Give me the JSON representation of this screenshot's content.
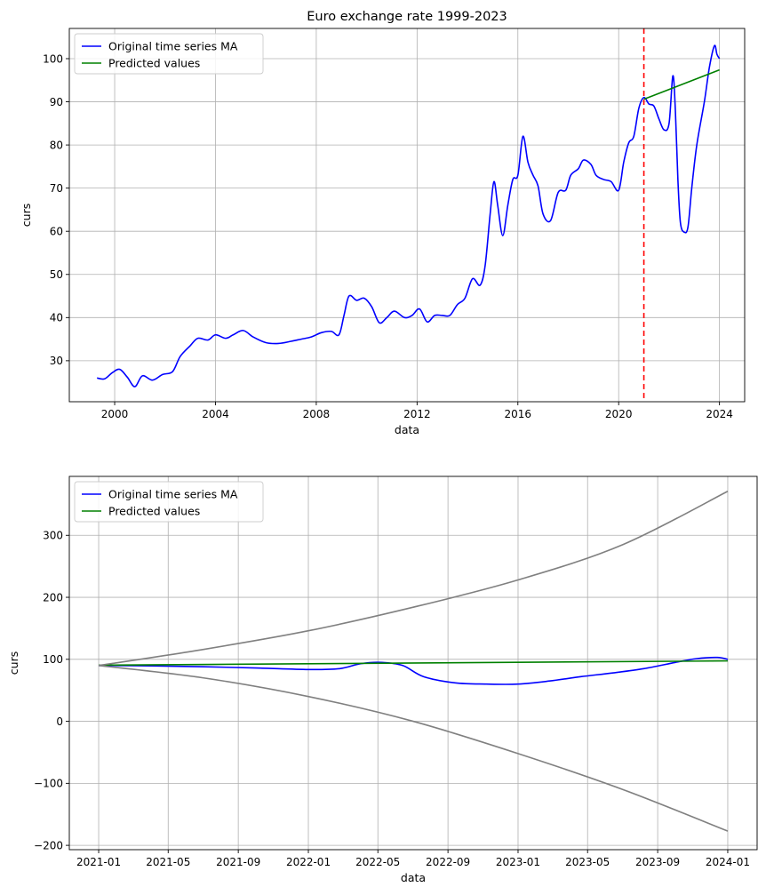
{
  "chart_data": [
    {
      "type": "line",
      "title": "Euro exchange rate 1999-2023",
      "xlabel": "data",
      "ylabel": "curs",
      "xlim": [
        1998.2,
        2025.0
      ],
      "ylim": [
        20.5,
        107.0
      ],
      "xticks": [
        2000,
        2004,
        2008,
        2012,
        2016,
        2020,
        2024
      ],
      "xtick_labels": [
        "2000",
        "2004",
        "2008",
        "2012",
        "2016",
        "2020",
        "2024"
      ],
      "yticks": [
        30,
        40,
        50,
        60,
        70,
        80,
        90,
        100
      ],
      "ytick_labels": [
        "30",
        "40",
        "50",
        "60",
        "70",
        "80",
        "90",
        "100"
      ],
      "grid": true,
      "legend": {
        "loc": "upper left",
        "entries": [
          "Original time series MA",
          "Predicted values"
        ]
      },
      "colors": {
        "ma": "#0000ff",
        "pred": "#008000",
        "vline": "#ff0000"
      },
      "vline": {
        "x": 2021.0
      },
      "series": [
        {
          "name": "Original time series MA",
          "x": [
            1999.3,
            1999.6,
            1999.9,
            2000.2,
            2000.5,
            2000.8,
            2001.1,
            2001.5,
            2001.9,
            2002.3,
            2002.6,
            2003.0,
            2003.3,
            2003.7,
            2004.0,
            2004.4,
            2004.7,
            2005.1,
            2005.5,
            2006.0,
            2006.5,
            2007.0,
            2007.4,
            2007.8,
            2008.2,
            2008.6,
            2008.9,
            2009.1,
            2009.3,
            2009.6,
            2009.9,
            2010.2,
            2010.5,
            2010.8,
            2011.1,
            2011.5,
            2011.8,
            2012.1,
            2012.4,
            2012.7,
            2013.0,
            2013.3,
            2013.6,
            2013.9,
            2014.2,
            2014.5,
            2014.7,
            2014.9,
            2015.05,
            2015.2,
            2015.4,
            2015.6,
            2015.8,
            2016.0,
            2016.2,
            2016.4,
            2016.6,
            2016.8,
            2017.0,
            2017.3,
            2017.6,
            2017.9,
            2018.1,
            2018.4,
            2018.6,
            2018.9,
            2019.1,
            2019.4,
            2019.7,
            2020.0,
            2020.2,
            2020.4,
            2020.6,
            2020.8,
            2021.0,
            2021.2,
            2021.4,
            2021.6,
            2021.8,
            2022.0,
            2022.15,
            2022.25,
            2022.35,
            2022.45,
            2022.6,
            2022.75,
            2022.9,
            2023.1,
            2023.4,
            2023.6,
            2023.8,
            2023.9,
            2024.0
          ],
          "y": [
            26.0,
            25.8,
            27.2,
            28.0,
            26.2,
            24.0,
            26.5,
            25.5,
            26.8,
            27.5,
            31.0,
            33.5,
            35.2,
            34.8,
            36.0,
            35.2,
            36.0,
            37.0,
            35.5,
            34.2,
            34.0,
            34.5,
            35.0,
            35.5,
            36.5,
            36.8,
            36.0,
            40.5,
            45.0,
            44.0,
            44.5,
            42.5,
            38.8,
            40.0,
            41.5,
            40.0,
            40.5,
            42.0,
            39.0,
            40.5,
            40.5,
            40.5,
            43.0,
            44.5,
            49.0,
            47.5,
            52.0,
            64.0,
            71.5,
            66.0,
            59.0,
            66.0,
            72.0,
            73.0,
            82.0,
            76.0,
            73.0,
            70.5,
            64.0,
            62.5,
            69.0,
            69.5,
            73.0,
            74.5,
            76.5,
            75.5,
            73.0,
            72.0,
            71.5,
            69.5,
            76.0,
            80.5,
            82.0,
            88.5,
            91.0,
            89.5,
            89.0,
            86.0,
            83.5,
            85.0,
            96.0,
            88.0,
            72.0,
            62.0,
            59.8,
            61.0,
            70.0,
            80.0,
            90.0,
            98.0,
            103.0,
            101.0,
            100.0
          ]
        },
        {
          "name": "Predicted values",
          "x": [
            2021.0,
            2024.0
          ],
          "y": [
            90.6,
            97.4
          ]
        }
      ]
    },
    {
      "type": "line",
      "title": "",
      "xlabel": "data",
      "ylabel": "curs",
      "xlim": [
        2020.86,
        2024.14
      ],
      "ylim": [
        -207,
        395
      ],
      "xticks": [
        2021.0,
        2021.3315,
        2021.6658,
        2022.0,
        2022.3315,
        2022.6658,
        2023.0,
        2023.3315,
        2023.6658,
        2024.0
      ],
      "xtick_labels": [
        "2021-01",
        "2021-05",
        "2021-09",
        "2022-01",
        "2022-05",
        "2022-09",
        "2023-01",
        "2023-05",
        "2023-09",
        "2024-01"
      ],
      "yticks": [
        -200,
        -100,
        0,
        100,
        200,
        300
      ],
      "ytick_labels": [
        "−200",
        "−100",
        "0",
        "100",
        "200",
        "300"
      ],
      "grid": true,
      "legend": {
        "loc": "upper left",
        "entries": [
          "Original time series MA",
          "Predicted values"
        ]
      },
      "colors": {
        "ma": "#0000ff",
        "pred": "#008000",
        "band": "#808080"
      },
      "series": [
        {
          "name": "Original time series MA",
          "x": [
            2021.0,
            2021.25,
            2021.5,
            2021.75,
            2022.0,
            2022.15,
            2022.25,
            2022.35,
            2022.45,
            2022.55,
            2022.7,
            2022.85,
            2023.0,
            2023.15,
            2023.3,
            2023.45,
            2023.6,
            2023.75,
            2023.85,
            2023.95,
            2024.0
          ],
          "y": [
            90.0,
            89.5,
            88.0,
            86.0,
            83.5,
            85.0,
            93.0,
            95.0,
            90.0,
            72.0,
            62.0,
            60.0,
            60.0,
            65.0,
            72.0,
            78.0,
            85.0,
            95.0,
            101.0,
            103.0,
            100.0
          ]
        },
        {
          "name": "Predicted values",
          "x": [
            2021.0,
            2024.0
          ],
          "y": [
            90.6,
            97.4
          ]
        },
        {
          "name": "upper bound",
          "x": [
            2021.0,
            2021.5,
            2022.0,
            2022.5,
            2023.0,
            2023.5,
            2024.0
          ],
          "y": [
            90.0,
            116.0,
            146.0,
            184.0,
            228.0,
            285.0,
            371.0
          ]
        },
        {
          "name": "lower bound",
          "x": [
            2021.0,
            2021.5,
            2022.0,
            2022.5,
            2023.0,
            2023.5,
            2024.0
          ],
          "y": [
            90.0,
            70.0,
            40.0,
            0.0,
            -52.0,
            -110.0,
            -177.0
          ]
        }
      ]
    }
  ]
}
